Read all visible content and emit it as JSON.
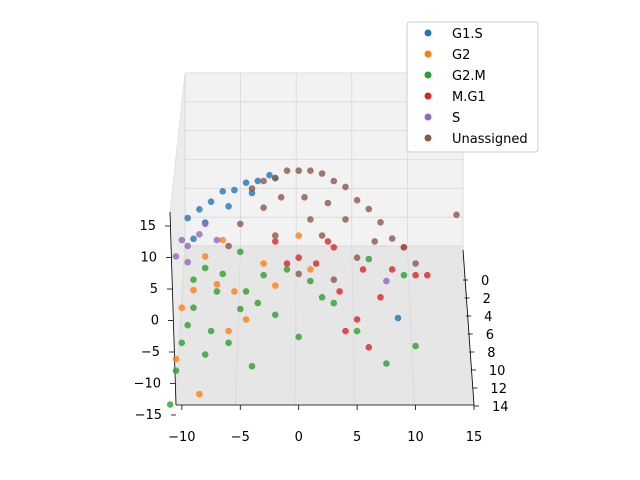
{
  "chart_data": {
    "type": "scatter",
    "projection": "3d",
    "x_ticks": [
      "−10",
      "−5",
      "0",
      "5",
      "10",
      "15"
    ],
    "y_ticks": [
      "0",
      "2",
      "4",
      "6",
      "8",
      "10",
      "12",
      "14"
    ],
    "z_ticks": [
      "−15",
      "−10",
      "−5",
      "0",
      "5",
      "10",
      "15"
    ],
    "xlim": [
      -10.5,
      15
    ],
    "ylim": [
      -1,
      14
    ],
    "zlim": [
      -15,
      18
    ],
    "grid": true,
    "legend_position": "top-right",
    "series": [
      {
        "name": "G1.S",
        "color": "#1f77b4",
        "values": [
          [
            -9.5,
            5.0,
            13.0
          ],
          [
            -8.5,
            5.0,
            14.5
          ],
          [
            -7.5,
            5.0,
            15.8
          ],
          [
            -6.5,
            4.0,
            16.8
          ],
          [
            -5.5,
            4.0,
            17.0
          ],
          [
            -4.5,
            3.0,
            17.5
          ],
          [
            -3.5,
            3.0,
            17.8
          ],
          [
            -2.5,
            2.0,
            18.0
          ],
          [
            -2.0,
            2.0,
            17.5
          ],
          [
            -9.0,
            7.0,
            11.0
          ],
          [
            8.5,
            9.0,
            -1.0
          ],
          [
            -8.0,
            6.0,
            13.0
          ],
          [
            -6.0,
            5.0,
            15.0
          ],
          [
            -4.0,
            4.0,
            16.5
          ]
        ]
      },
      {
        "name": "G2",
        "color": "#ff7f0e",
        "values": [
          [
            -10.5,
            9.0,
            -8.0
          ],
          [
            -10.0,
            8.0,
            0.0
          ],
          [
            -9.0,
            8.0,
            3.0
          ],
          [
            -8.5,
            9.0,
            -14.0
          ],
          [
            -7.0,
            8.0,
            4.0
          ],
          [
            -6.0,
            8.0,
            -4.0
          ],
          [
            -5.5,
            7.0,
            2.0
          ],
          [
            -4.5,
            8.0,
            -2.0
          ],
          [
            -3.0,
            6.0,
            6.0
          ],
          [
            -2.0,
            7.0,
            3.0
          ],
          [
            0.0,
            5.0,
            10.0
          ],
          [
            1.0,
            6.0,
            5.0
          ],
          [
            -8.0,
            7.0,
            8.0
          ],
          [
            -6.5,
            6.0,
            10.0
          ]
        ]
      },
      {
        "name": "G2.M",
        "color": "#2ca02c",
        "values": [
          [
            -11.0,
            10.0,
            -15.0
          ],
          [
            -10.5,
            9.0,
            -10.0
          ],
          [
            -10.0,
            8.0,
            -6.0
          ],
          [
            -9.5,
            8.0,
            -3.0
          ],
          [
            -9.0,
            8.0,
            0.0
          ],
          [
            -8.0,
            8.0,
            -8.0
          ],
          [
            -7.5,
            8.0,
            -4.0
          ],
          [
            -7.0,
            7.0,
            2.0
          ],
          [
            -6.0,
            8.0,
            -6.0
          ],
          [
            -5.0,
            7.0,
            -1.0
          ],
          [
            -4.0,
            8.0,
            -10.0
          ],
          [
            -3.5,
            7.0,
            0.0
          ],
          [
            -3.0,
            6.0,
            4.0
          ],
          [
            -2.0,
            7.0,
            -2.0
          ],
          [
            -1.0,
            6.0,
            5.0
          ],
          [
            0.0,
            8.0,
            -5.0
          ],
          [
            0.5,
            11.0,
            -18.0
          ],
          [
            1.0,
            6.0,
            3.0
          ],
          [
            2.0,
            7.0,
            1.0
          ],
          [
            3.0,
            7.0,
            0.0
          ],
          [
            5.0,
            8.0,
            -4.0
          ],
          [
            6.0,
            5.0,
            6.0
          ],
          [
            7.5,
            10.0,
            -8.0
          ],
          [
            9.0,
            6.0,
            4.0
          ],
          [
            10.0,
            10.0,
            -5.0
          ],
          [
            -9.0,
            7.0,
            4.0
          ],
          [
            -8.0,
            7.0,
            6.0
          ],
          [
            -6.5,
            7.0,
            5.0
          ],
          [
            -5.0,
            6.0,
            8.0
          ],
          [
            -4.5,
            7.0,
            2.0
          ]
        ]
      },
      {
        "name": "M.G1",
        "color": "#d62728",
        "values": [
          [
            0.0,
            6.0,
            7.0
          ],
          [
            1.5,
            6.0,
            6.0
          ],
          [
            2.5,
            5.0,
            9.0
          ],
          [
            3.5,
            7.0,
            2.0
          ],
          [
            4.0,
            8.0,
            -4.0
          ],
          [
            5.0,
            8.0,
            -2.0
          ],
          [
            5.5,
            6.0,
            5.0
          ],
          [
            6.0,
            9.0,
            -6.0
          ],
          [
            7.0,
            7.0,
            1.0
          ],
          [
            8.0,
            6.0,
            5.0
          ],
          [
            9.0,
            5.0,
            8.0
          ],
          [
            10.0,
            6.0,
            4.0
          ],
          [
            11.0,
            6.0,
            4.0
          ],
          [
            -1.0,
            6.0,
            6.0
          ],
          [
            -2.0,
            5.0,
            9.0
          ],
          [
            3.0,
            5.0,
            8.0
          ]
        ]
      },
      {
        "name": "S",
        "color": "#9467bd",
        "values": [
          [
            -10.0,
            6.0,
            10.0
          ],
          [
            -9.5,
            6.0,
            9.0
          ],
          [
            -10.5,
            7.0,
            8.0
          ],
          [
            7.5,
            6.0,
            3.0
          ],
          [
            -8.5,
            6.0,
            11.0
          ],
          [
            -9.5,
            7.0,
            7.0
          ],
          [
            -8.0,
            5.0,
            12.0
          ],
          [
            -7.0,
            6.0,
            10.0
          ]
        ]
      },
      {
        "name": "Unassigned",
        "color": "#8c564b",
        "values": [
          [
            -4.0,
            3.0,
            16.5
          ],
          [
            -3.0,
            2.0,
            17.0
          ],
          [
            -2.0,
            2.0,
            17.5
          ],
          [
            -1.0,
            1.0,
            18.0
          ],
          [
            0.0,
            1.0,
            18.0
          ],
          [
            1.0,
            1.0,
            18.0
          ],
          [
            2.0,
            1.0,
            17.5
          ],
          [
            3.0,
            2.0,
            17.0
          ],
          [
            4.0,
            2.0,
            16.0
          ],
          [
            5.0,
            3.0,
            14.5
          ],
          [
            6.0,
            3.0,
            13.0
          ],
          [
            7.0,
            4.0,
            11.5
          ],
          [
            8.0,
            5.0,
            9.5
          ],
          [
            9.0,
            5.0,
            8.0
          ],
          [
            10.0,
            6.0,
            6.0
          ],
          [
            13.5,
            3.0,
            12.0
          ],
          [
            -1.5,
            3.0,
            15.0
          ],
          [
            0.5,
            3.0,
            15.0
          ],
          [
            2.5,
            3.0,
            14.0
          ],
          [
            -3.0,
            4.0,
            14.0
          ],
          [
            -5.0,
            5.0,
            12.0
          ],
          [
            1.0,
            4.0,
            12.0
          ],
          [
            4.0,
            4.0,
            12.0
          ],
          [
            6.5,
            5.0,
            9.0
          ],
          [
            -2.0,
            5.0,
            10.0
          ],
          [
            2.0,
            5.0,
            10.0
          ],
          [
            5.0,
            6.0,
            7.0
          ],
          [
            -6.0,
            6.0,
            9.0
          ],
          [
            0.0,
            7.0,
            5.0
          ],
          [
            3.0,
            7.0,
            4.0
          ]
        ]
      }
    ]
  }
}
